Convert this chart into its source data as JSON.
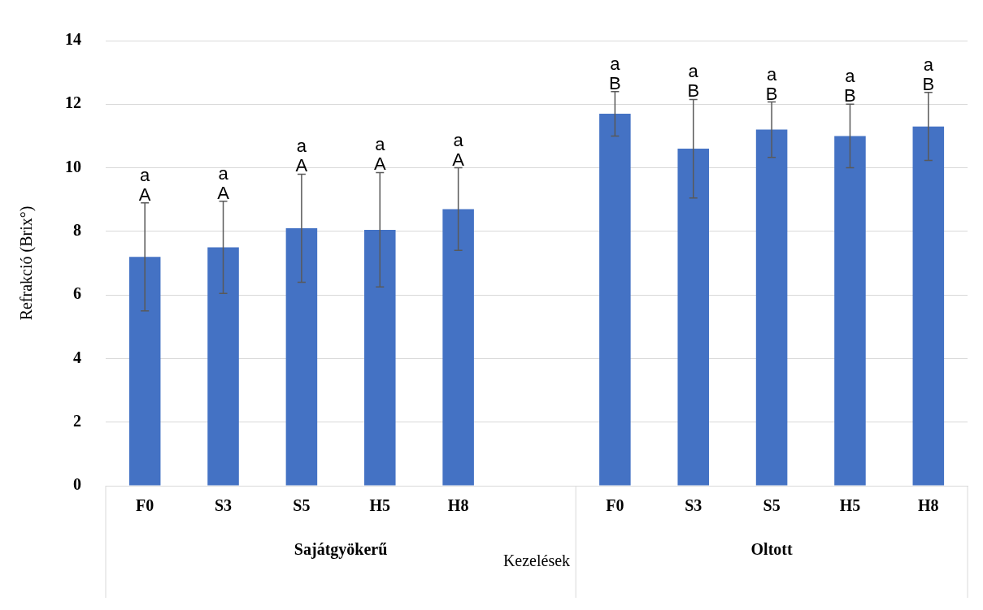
{
  "chart_data": {
    "type": "bar",
    "ylabel": "Refrakció (Brix°)",
    "xlabel": "Kezelések",
    "categories": [
      "F0",
      "S3",
      "S5",
      "H5",
      "H8",
      null,
      "F0",
      "S3",
      "S5",
      "H5",
      "H8"
    ],
    "values": [
      7.2,
      7.5,
      8.1,
      8.05,
      8.7,
      null,
      11.7,
      10.6,
      11.2,
      11.0,
      11.3
    ],
    "errors": [
      1.7,
      1.45,
      1.7,
      1.8,
      1.3,
      null,
      0.7,
      1.55,
      0.87,
      1.0,
      1.07
    ],
    "value_labels": [
      "a\nA",
      "a\nA",
      "a\nA",
      "a\nA",
      "a\nA",
      null,
      "a\nB",
      "a\nB",
      "a\nB",
      "a\nB",
      "a\nB"
    ],
    "color": "#4472c4",
    "ylim": [
      0,
      14
    ],
    "yticks": [
      0,
      2,
      4,
      6,
      8,
      10,
      12,
      14
    ],
    "grid": "y",
    "annotations": [
      "Sajátgyökerű",
      "Oltott"
    ]
  }
}
